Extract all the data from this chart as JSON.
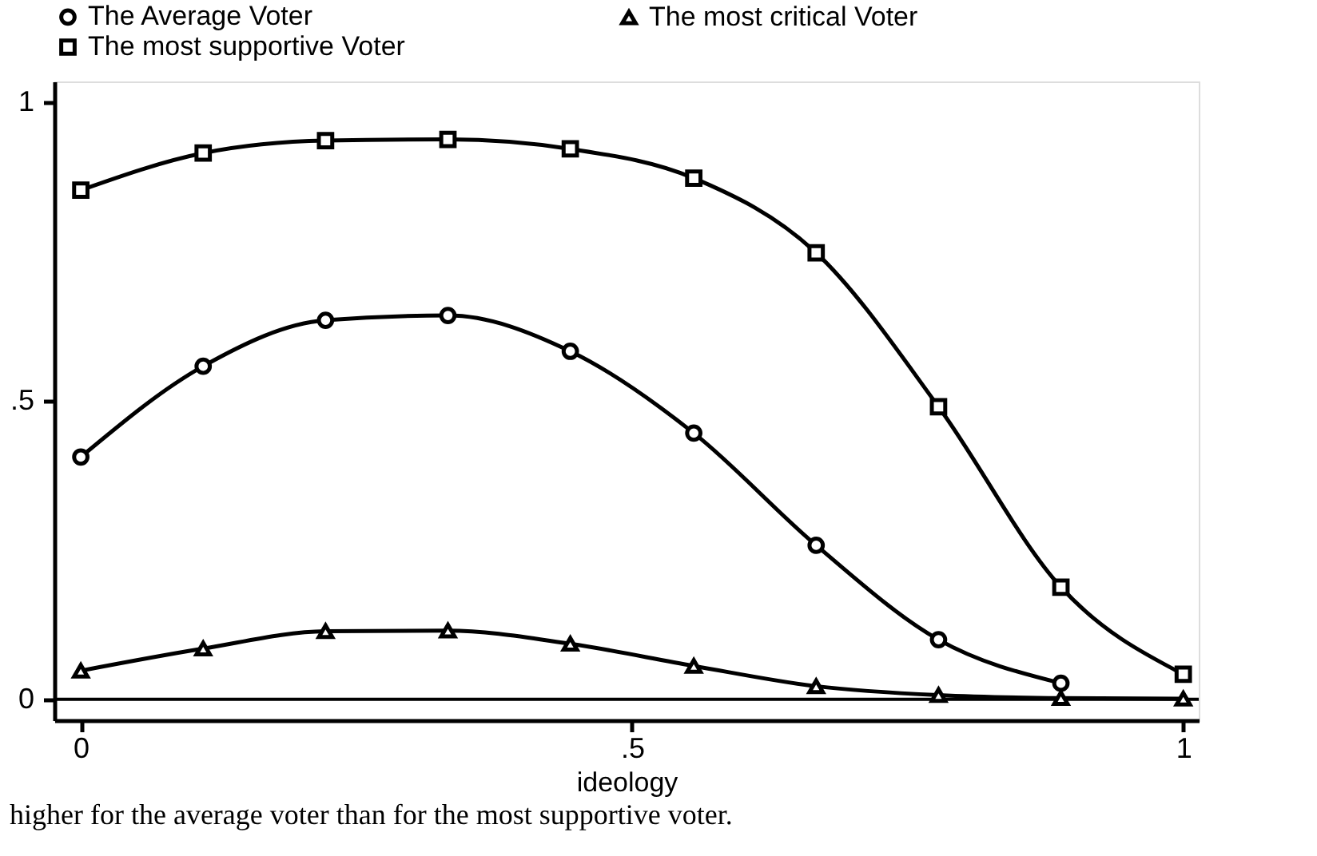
{
  "chart_data": {
    "type": "line",
    "x": [
      0,
      0.111,
      0.222,
      0.333,
      0.444,
      0.556,
      0.667,
      0.778,
      0.889,
      1
    ],
    "series": [
      {
        "name": "The Average Voter",
        "color": "#000000",
        "marker": "circle",
        "values": [
          0.406,
          0.558,
          0.635,
          0.643,
          0.583,
          0.446,
          0.258,
          0.1,
          0.027,
          null
        ]
      },
      {
        "name": "The most critical Voter",
        "color": "#000000",
        "marker": "triangle",
        "values": [
          0.048,
          0.085,
          0.114,
          0.115,
          0.093,
          0.056,
          0.022,
          0.007,
          0.002,
          0.001
        ]
      },
      {
        "name": "The most supportive Voter",
        "color": "#000000",
        "marker": "square",
        "values": [
          0.853,
          0.915,
          0.936,
          0.938,
          0.922,
          0.873,
          0.748,
          0.49,
          0.188,
          0.042
        ]
      }
    ],
    "xlabel": "ideology",
    "xlim": [
      -0.024,
      1.014
    ],
    "ylim": [
      -0.035,
      1.035
    ],
    "xticks": [
      0,
      {
        "value": 0.5,
        "label": ".5"
      },
      1
    ],
    "yticks": [
      0,
      {
        "value": 0.5,
        "label": ".5"
      },
      1
    ],
    "ref_lines": [
      {
        "axis": "y",
        "value": 0,
        "label": null,
        "color": "#000000"
      }
    ],
    "annotations": [
      "higher for the average voter than for the most supportive voter."
    ],
    "legend": "top left",
    "grid": false,
    "line_style": "solid"
  }
}
